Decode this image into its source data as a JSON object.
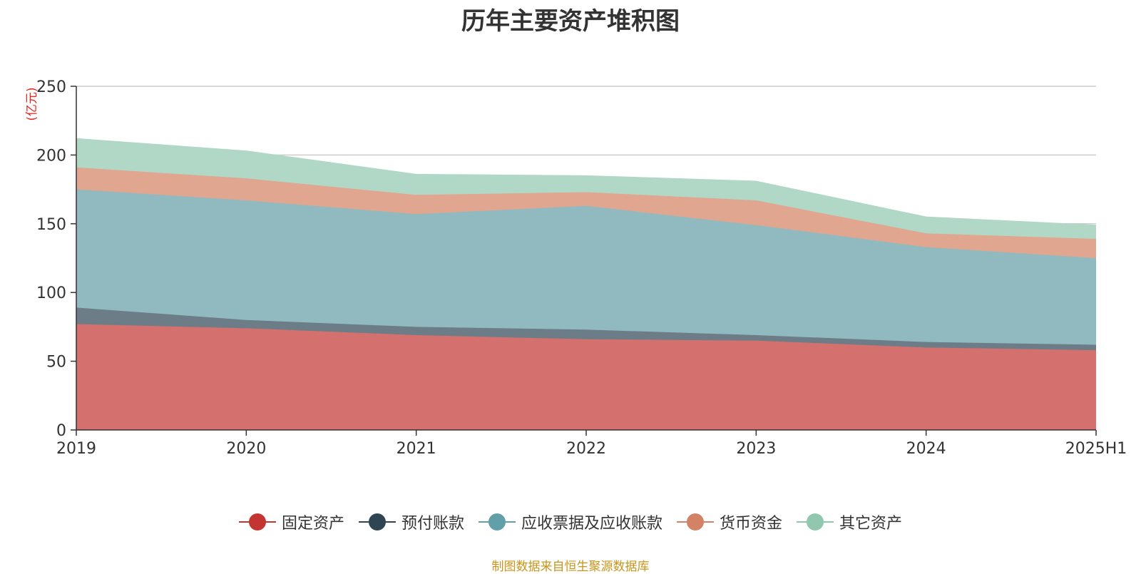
{
  "chart_data": {
    "type": "area",
    "stacked": true,
    "title": "历年主要资产堆积图",
    "ylabel": "(亿元)",
    "xlabel": "",
    "ylim": [
      0,
      250
    ],
    "yticks": [
      0,
      50,
      100,
      150,
      200,
      250
    ],
    "categories": [
      "2019",
      "2020",
      "2021",
      "2022",
      "2023",
      "2024",
      "2025H1"
    ],
    "grid": true,
    "legend_position": "bottom",
    "series": [
      {
        "name": "固定资产",
        "color": "#c23531",
        "fill": "#d4706d",
        "values": [
          77,
          74,
          69,
          66,
          65,
          60,
          58
        ]
      },
      {
        "name": "预付账款",
        "color": "#2f4554",
        "fill": "#6d7d88",
        "values": [
          12,
          6,
          6,
          7,
          4,
          4,
          4
        ]
      },
      {
        "name": "应收票据及应收账款",
        "color": "#61a0a8",
        "fill": "#90bac0",
        "values": [
          86,
          87,
          82,
          90,
          80,
          69,
          63
        ]
      },
      {
        "name": "货币资金",
        "color": "#d48265",
        "fill": "#e0a690",
        "values": [
          16,
          16,
          14,
          10,
          18,
          10,
          14
        ]
      },
      {
        "name": "其它资产",
        "color": "#91c7ae",
        "fill": "#b1d8c6",
        "values": [
          21,
          20,
          15,
          12,
          14,
          12,
          10
        ]
      }
    ]
  },
  "source_note": "制图数据来自恒生聚源数据库"
}
